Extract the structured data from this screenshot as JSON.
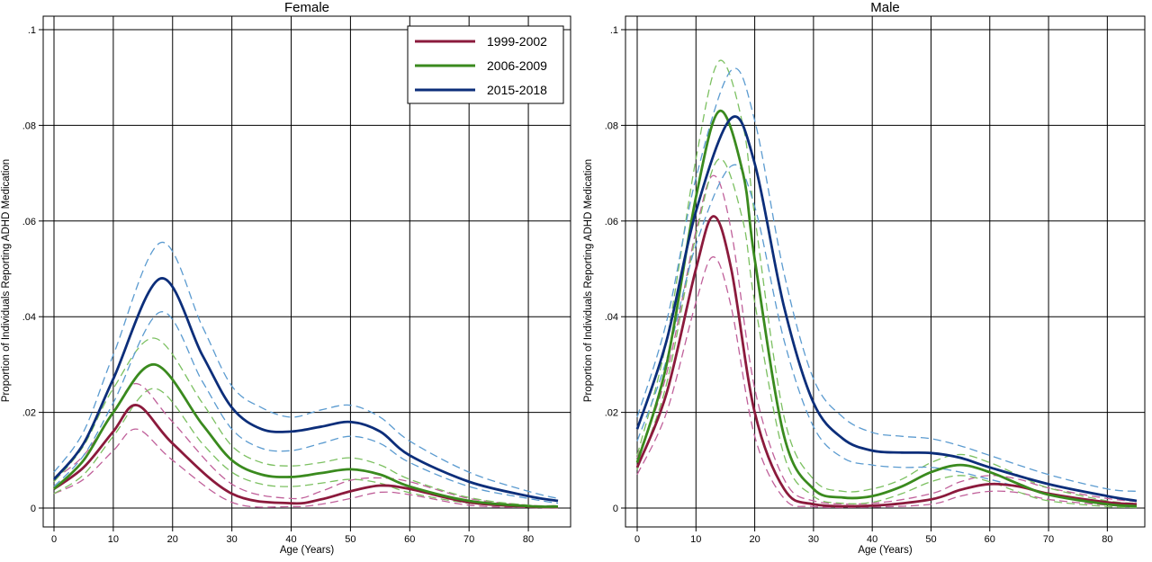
{
  "chart_data": [
    {
      "type": "line",
      "title": "Female",
      "xlabel": "Age (Years)",
      "ylabel": "Proportion of Individuals Reporting ADHD Medication",
      "xlim": [
        0,
        85
      ],
      "ylim": [
        0,
        0.1
      ],
      "x_ticks": [
        "0",
        "10",
        "20",
        "30",
        "40",
        "50",
        "60",
        "70",
        "80"
      ],
      "y_ticks": [
        "0",
        ".02",
        ".04",
        ".06",
        ".08",
        ".1"
      ],
      "grid": true,
      "legend": {
        "placement": "top-right",
        "entries": [
          "1999-2002",
          "2006-2009",
          "2015-2018"
        ]
      },
      "series": [
        {
          "name": "1999-2002",
          "color": "#8b1a3c",
          "ci_color": "#c0609a",
          "x": [
            0,
            5,
            10,
            14,
            20,
            30,
            40,
            45,
            50,
            55,
            60,
            70,
            80,
            85
          ],
          "y": [
            0.004,
            0.0085,
            0.016,
            0.0215,
            0.0135,
            0.003,
            0.001,
            0.0018,
            0.0035,
            0.0047,
            0.004,
            0.0012,
            0.0003,
            0.0002
          ],
          "lower": [
            0.003,
            0.006,
            0.012,
            0.0165,
            0.01,
            0.0012,
            0.0003,
            0.0008,
            0.002,
            0.0033,
            0.0028,
            0.0006,
            0.0001,
            0.0001
          ],
          "upper": [
            0.006,
            0.011,
            0.02,
            0.026,
            0.018,
            0.005,
            0.002,
            0.0035,
            0.0058,
            0.0063,
            0.0055,
            0.002,
            0.0006,
            0.0005
          ]
        },
        {
          "name": "2006-2009",
          "color": "#3a8a1e",
          "ci_color": "#7cc061",
          "x": [
            0,
            5,
            10,
            17,
            25,
            30,
            35,
            40,
            45,
            50,
            55,
            60,
            70,
            80,
            85
          ],
          "y": [
            0.004,
            0.01,
            0.02,
            0.03,
            0.0175,
            0.01,
            0.007,
            0.0065,
            0.0073,
            0.0081,
            0.007,
            0.0045,
            0.0015,
            0.0004,
            0.0003
          ],
          "lower": [
            0.003,
            0.007,
            0.015,
            0.025,
            0.0135,
            0.0075,
            0.005,
            0.0045,
            0.0052,
            0.006,
            0.0052,
            0.0032,
            0.001,
            0.0002,
            0.0001
          ],
          "upper": [
            0.0055,
            0.013,
            0.025,
            0.0355,
            0.022,
            0.013,
            0.0095,
            0.0088,
            0.0095,
            0.0105,
            0.009,
            0.006,
            0.0022,
            0.0006,
            0.0005
          ]
        },
        {
          "name": "2015-2018",
          "color": "#0c2e7a",
          "ci_color": "#5b9bd0",
          "x": [
            0,
            5,
            10,
            18,
            25,
            30,
            35,
            40,
            45,
            50,
            55,
            60,
            70,
            80,
            85
          ],
          "y": [
            0.006,
            0.0135,
            0.027,
            0.048,
            0.032,
            0.021,
            0.0165,
            0.016,
            0.017,
            0.018,
            0.016,
            0.011,
            0.0055,
            0.0025,
            0.0015
          ],
          "lower": [
            0.0045,
            0.011,
            0.022,
            0.041,
            0.0265,
            0.0165,
            0.0125,
            0.012,
            0.0135,
            0.015,
            0.0135,
            0.0095,
            0.0045,
            0.002,
            0.001
          ],
          "upper": [
            0.0075,
            0.016,
            0.032,
            0.0555,
            0.038,
            0.0255,
            0.021,
            0.019,
            0.0205,
            0.0215,
            0.019,
            0.014,
            0.0075,
            0.0035,
            0.002
          ]
        }
      ]
    },
    {
      "type": "line",
      "title": "Male",
      "xlabel": "Age (Years)",
      "ylabel": "Proportion of Individuals Reporting ADHD Medication",
      "xlim": [
        0,
        85
      ],
      "ylim": [
        0,
        0.1
      ],
      "x_ticks": [
        "0",
        "10",
        "20",
        "30",
        "40",
        "50",
        "60",
        "70",
        "80"
      ],
      "y_ticks": [
        "0",
        ".02",
        ".04",
        ".06",
        ".08",
        ".1"
      ],
      "grid": true,
      "series": [
        {
          "name": "1999-2002",
          "color": "#8b1a3c",
          "ci_color": "#c0609a",
          "x": [
            0,
            5,
            10,
            13,
            16,
            20,
            25,
            30,
            40,
            50,
            55,
            60,
            65,
            70,
            80,
            85
          ],
          "y": [
            0.0085,
            0.024,
            0.05,
            0.061,
            0.05,
            0.02,
            0.004,
            0.0008,
            0.0005,
            0.0018,
            0.0038,
            0.005,
            0.0045,
            0.003,
            0.0012,
            0.0008
          ],
          "lower": [
            0.007,
            0.02,
            0.043,
            0.0525,
            0.042,
            0.015,
            0.002,
            0.0003,
            0.0002,
            0.0008,
            0.0025,
            0.0035,
            0.0032,
            0.0018,
            0.0006,
            0.0003
          ],
          "upper": [
            0.0105,
            0.028,
            0.058,
            0.0695,
            0.058,
            0.025,
            0.006,
            0.0015,
            0.001,
            0.003,
            0.0055,
            0.0068,
            0.006,
            0.0042,
            0.002,
            0.0014
          ]
        },
        {
          "name": "2006-2009",
          "color": "#3a8a1e",
          "ci_color": "#7cc061",
          "x": [
            0,
            5,
            10,
            14,
            18,
            20,
            25,
            30,
            35,
            40,
            45,
            50,
            55,
            60,
            65,
            70,
            80,
            85
          ],
          "y": [
            0.0095,
            0.03,
            0.065,
            0.083,
            0.07,
            0.052,
            0.015,
            0.004,
            0.0022,
            0.0025,
            0.0045,
            0.0075,
            0.009,
            0.0075,
            0.005,
            0.0028,
            0.0008,
            0.0004
          ],
          "lower": [
            0.008,
            0.026,
            0.057,
            0.073,
            0.06,
            0.043,
            0.011,
            0.0025,
            0.001,
            0.0012,
            0.003,
            0.0055,
            0.0068,
            0.0055,
            0.0033,
            0.0015,
            0.0003,
            0.0001
          ],
          "upper": [
            0.011,
            0.035,
            0.073,
            0.0935,
            0.08,
            0.061,
            0.019,
            0.006,
            0.0035,
            0.004,
            0.006,
            0.0095,
            0.0112,
            0.0095,
            0.0068,
            0.0042,
            0.0015,
            0.001
          ]
        },
        {
          "name": "2015-2018",
          "color": "#0c2e7a",
          "ci_color": "#5b9bd0",
          "x": [
            0,
            5,
            10,
            16,
            20,
            25,
            30,
            35,
            40,
            45,
            50,
            55,
            60,
            70,
            80,
            85
          ],
          "y": [
            0.0165,
            0.035,
            0.062,
            0.0815,
            0.072,
            0.042,
            0.022,
            0.0145,
            0.012,
            0.0116,
            0.0115,
            0.0105,
            0.0085,
            0.005,
            0.0025,
            0.0015
          ],
          "lower": [
            0.014,
            0.031,
            0.055,
            0.0715,
            0.063,
            0.035,
            0.017,
            0.0105,
            0.009,
            0.0085,
            0.0085,
            0.0075,
            0.006,
            0.003,
            0.0012,
            0.0005
          ],
          "upper": [
            0.019,
            0.039,
            0.069,
            0.0915,
            0.081,
            0.049,
            0.027,
            0.019,
            0.0158,
            0.015,
            0.0145,
            0.013,
            0.011,
            0.007,
            0.004,
            0.0035
          ]
        }
      ]
    }
  ]
}
